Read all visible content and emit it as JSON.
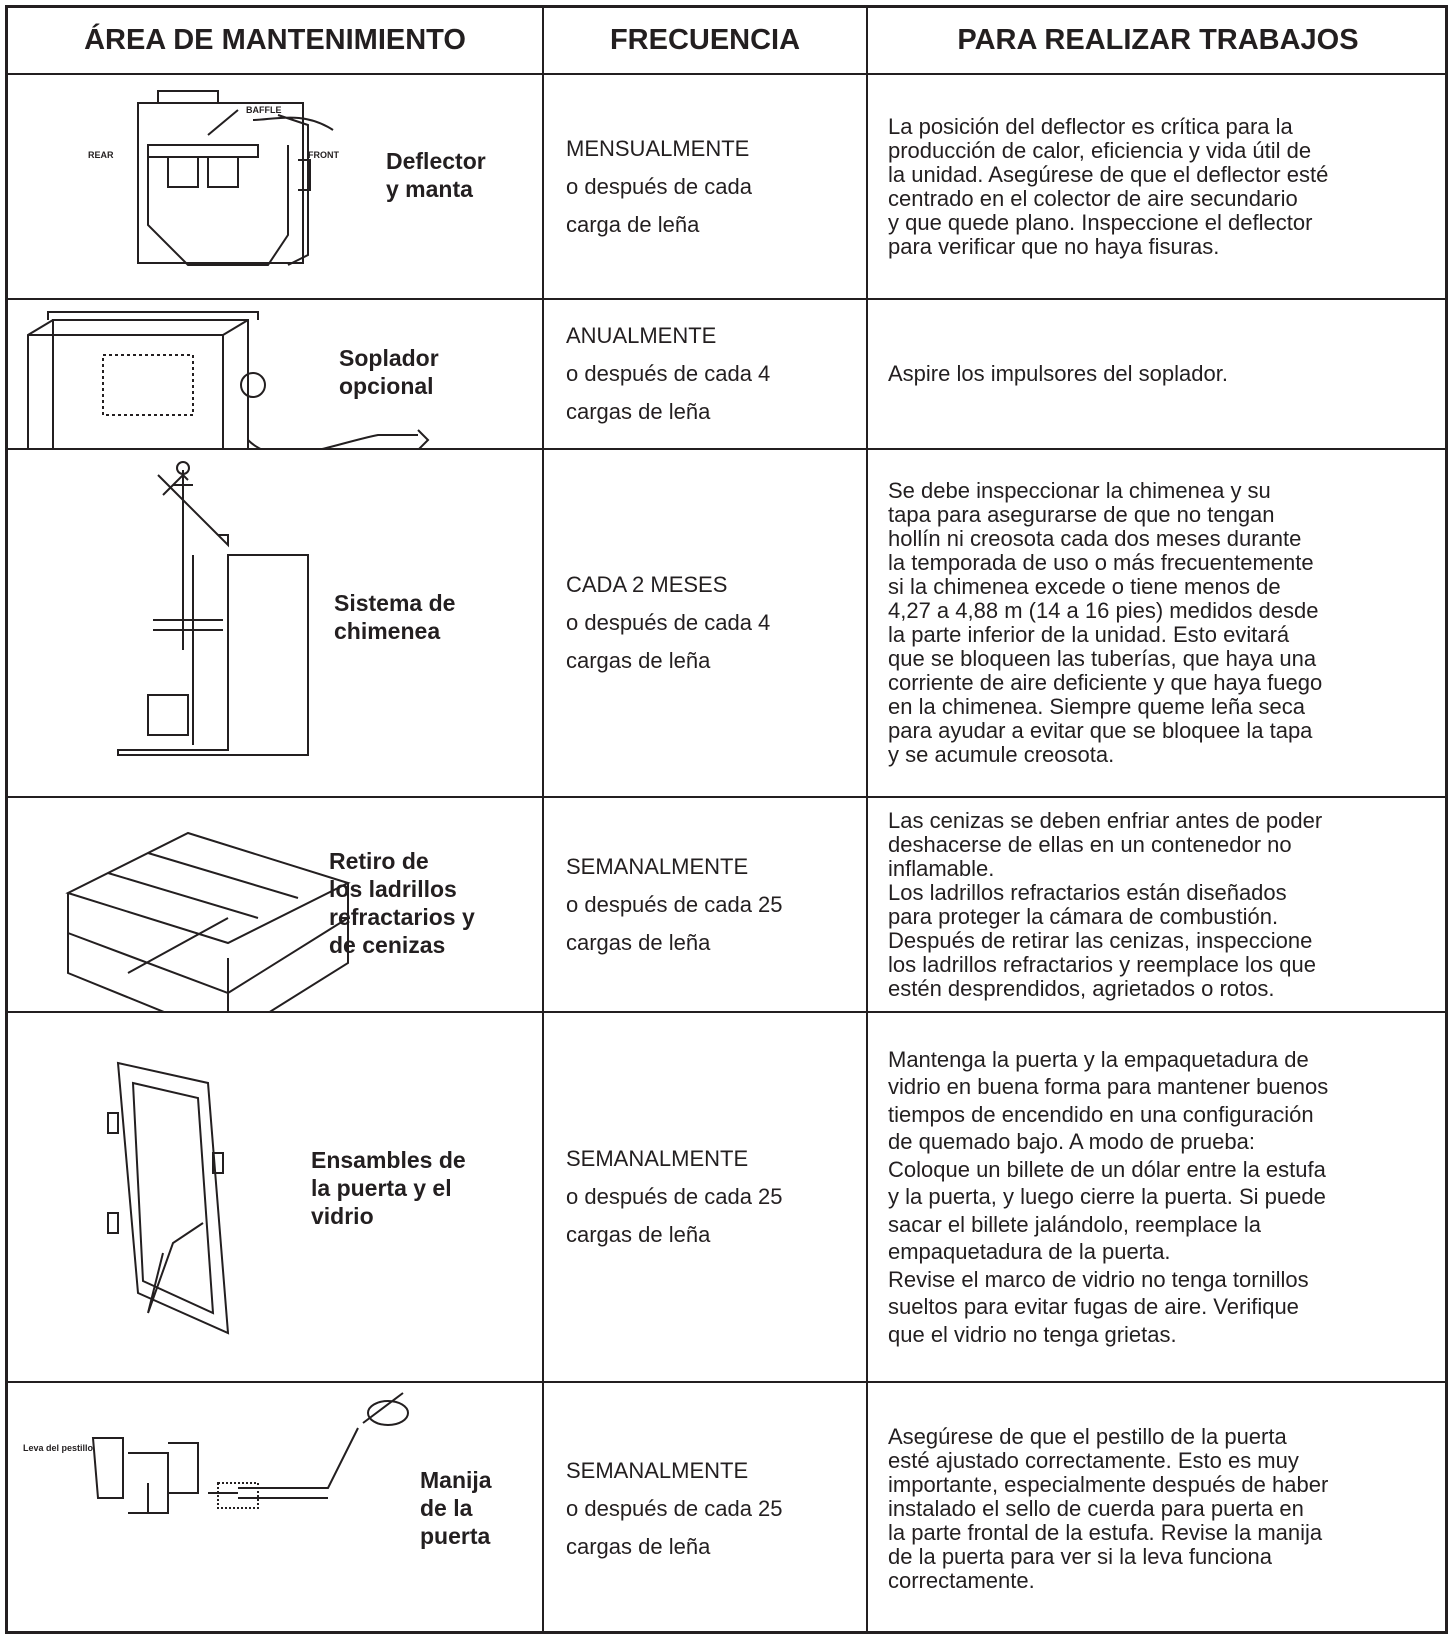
{
  "table": {
    "header": [
      "ÁREA DE MANTENIMIENTO",
      "FRECUENCIA",
      "PARA REALIZAR TRABAJOS"
    ],
    "rows": [
      {
        "area": [
          "Deflector",
          "y manta"
        ],
        "figure_labels": [
          "BAFFLE",
          "REAR",
          "FRONT"
        ],
        "frequency": [
          "MENSUALMENTE",
          "o después de cada",
          "carga de leña"
        ],
        "tasks": [
          "La posición del deflector es crítica para la",
          "producción de calor, eficiencia y vida útil de",
          "la unidad. Asegúrese de que el deflector esté",
          "centrado en el colector de aire secundario",
          "y que quede plano. Inspeccione el deflector",
          "para verificar que no haya fisuras."
        ]
      },
      {
        "area": [
          "Soplador",
          "opcional"
        ],
        "frequency": [
          "ANUALMENTE",
          "o después de cada 4",
          "cargas de leña"
        ],
        "tasks": [
          "Aspire los impulsores del soplador."
        ]
      },
      {
        "area": [
          "Sistema de",
          "chimenea"
        ],
        "frequency": [
          "CADA 2 MESES",
          "o después de cada 4",
          "cargas de leña"
        ],
        "tasks": [
          "Se debe inspeccionar la chimenea y su",
          "tapa para asegurarse de que no tengan",
          "hollín ni creosota cada dos meses durante",
          "la temporada de uso o más frecuentemente",
          "si la chimenea excede o tiene menos de",
          "4,27 a 4,88 m (14 a 16 pies) medidos desde",
          "la parte inferior de la unidad. Esto evitará",
          "que se bloqueen las tuberías, que haya una",
          "corriente de aire deficiente y que haya fuego",
          "en la chimenea. Siempre queme leña seca",
          "para ayudar a evitar que se bloquee la tapa",
          "y se acumule creosota."
        ]
      },
      {
        "area": [
          "Retiro de",
          "los ladrillos",
          "refractarios y",
          "de cenizas"
        ],
        "frequency": [
          "SEMANALMENTE",
          "o después de cada 25",
          "cargas de leña"
        ],
        "tasks": [
          "Las cenizas se deben enfriar antes de poder",
          "deshacerse de ellas en un contenedor no",
          "inflamable.",
          "Los ladrillos refractarios están diseñados",
          "para proteger la cámara de combustión.",
          "Después de retirar las cenizas, inspeccione",
          "los ladrillos refractarios y reemplace los que",
          "estén desprendidos, agrietados o rotos."
        ]
      },
      {
        "area": [
          "Ensambles de",
          "la puerta y el",
          "vidrio"
        ],
        "frequency": [
          "SEMANALMENTE",
          "o después de cada 25",
          "cargas de leña"
        ],
        "tasks": [
          "Mantenga la puerta y la empaquetadura de",
          "vidrio en buena forma para mantener buenos",
          "tiempos de encendido en una configuración",
          "de quemado bajo. A modo de prueba:",
          "Coloque un billete de un dólar entre la estufa",
          "y la puerta, y luego cierre la puerta. Si puede",
          "sacar el billete jalándolo, reemplace la",
          "empaquetadura de la puerta.",
          "Revise el marco de vidrio no tenga tornillos",
          "sueltos para evitar fugas de aire. Verifique",
          "que el vidrio no tenga grietas."
        ]
      },
      {
        "area": [
          "Manija",
          "de la",
          "puerta"
        ],
        "figure_labels": [
          "Leva del pestillo"
        ],
        "frequency": [
          "SEMANALMENTE",
          "o después de cada 25",
          "cargas de leña"
        ],
        "tasks": [
          "Asegúrese de que el pestillo de la puerta",
          "esté ajustado correctamente. Esto es muy",
          "importante, especialmente después de haber",
          "instalado el sello de cuerda para puerta en",
          "la parte frontal de la estufa. Revise la manija",
          "de la puerta para ver si la leva funciona",
          "correctamente."
        ]
      }
    ]
  }
}
